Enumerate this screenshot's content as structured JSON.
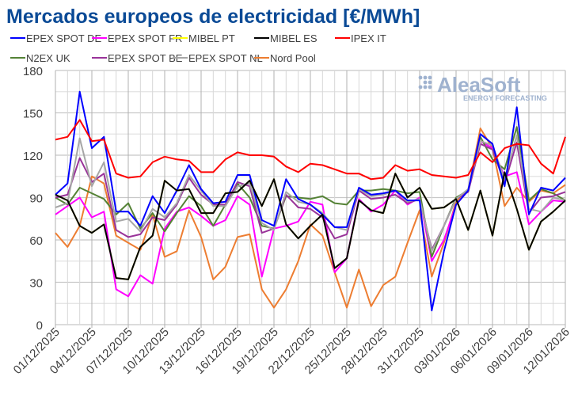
{
  "chart_data": {
    "type": "line",
    "title": "Mercados europeos de electricidad [€/MWh]",
    "title_color": "#0a4a96",
    "xlabel": "",
    "ylabel": "",
    "ylim": [
      0,
      180
    ],
    "yticks": [
      0,
      30,
      60,
      90,
      120,
      150,
      180
    ],
    "grid": true,
    "legend_position": "top",
    "watermark": "AleaSoft ENERGY FORECASTING",
    "x_start": "01/12/2025",
    "x_tick_labels": [
      "01/12/2025",
      "04/12/2025",
      "07/12/2025",
      "10/12/2025",
      "13/12/2025",
      "16/12/2025",
      "19/12/2025",
      "22/12/2025",
      "25/12/2025",
      "28/12/2025",
      "31/12/2025",
      "03/01/2026",
      "06/01/2026",
      "09/01/2026",
      "12/01/2026"
    ],
    "series": [
      {
        "name": "MIBEL PT",
        "color": "#ffff00",
        "values": [
          92,
          88,
          70,
          65,
          71,
          33,
          32,
          55,
          63,
          102,
          95,
          96,
          79,
          79,
          93,
          94,
          102,
          84,
          103,
          71,
          61,
          70,
          78,
          40,
          47,
          88,
          81,
          79,
          107,
          90,
          97,
          82,
          83,
          89,
          67,
          95,
          63,
          108,
          82,
          53,
          73,
          80,
          88
        ]
      },
      {
        "name": "Nord Pool",
        "color": "#ed7d31",
        "values": [
          65,
          55,
          70,
          105,
          100,
          63,
          58,
          53,
          78,
          48,
          52,
          81,
          62,
          32,
          41,
          62,
          64,
          25,
          12,
          25,
          45,
          71,
          63,
          37,
          12,
          39,
          13,
          28,
          34,
          58,
          81,
          34,
          58,
          87,
          95,
          139,
          125,
          84,
          97,
          87,
          95,
          93,
          99
        ]
      },
      {
        "name": "EPEX SPOT FR",
        "color": "#ff00ff",
        "values": [
          78,
          84,
          90,
          76,
          80,
          25,
          20,
          35,
          29,
          68,
          80,
          83,
          77,
          70,
          74,
          91,
          85,
          34,
          68,
          70,
          73,
          87,
          85,
          37,
          47,
          89,
          80,
          85,
          95,
          85,
          90,
          45,
          60,
          85,
          95,
          130,
          125,
          105,
          108,
          71,
          80,
          88,
          87
        ]
      },
      {
        "name": "N2EX UK",
        "color": "#548235",
        "values": [
          90,
          85,
          97,
          93,
          89,
          78,
          86,
          68,
          79,
          66,
          79,
          91,
          84,
          70,
          85,
          100,
          90,
          70,
          68,
          91,
          90,
          89,
          91,
          86,
          85,
          95,
          95,
          96,
          95,
          93,
          94,
          48,
          70,
          90,
          95,
          133,
          117,
          110,
          140,
          88,
          96,
          93,
          88
        ]
      },
      {
        "name": "EPEX SPOT BE",
        "color": "#993399",
        "values": [
          90,
          92,
          118,
          101,
          107,
          67,
          62,
          64,
          76,
          74,
          85,
          104,
          92,
          85,
          85,
          101,
          98,
          65,
          68,
          92,
          83,
          82,
          76,
          61,
          64,
          95,
          89,
          90,
          92,
          86,
          89,
          53,
          70,
          89,
          94,
          128,
          124,
          100,
          129,
          79,
          90,
          91,
          94
        ]
      },
      {
        "name": "EPEX SPOT NL",
        "color": "#a6a6a6",
        "values": [
          83,
          86,
          132,
          98,
          115,
          73,
          75,
          66,
          82,
          76,
          86,
          106,
          95,
          84,
          84,
          98,
          100,
          72,
          67,
          94,
          87,
          85,
          79,
          69,
          67,
          96,
          91,
          92,
          95,
          87,
          89,
          52,
          70,
          89,
          96,
          130,
          127,
          103,
          134,
          82,
          80,
          90,
          88
        ]
      },
      {
        "name": "EPEX SPOT DE",
        "color": "#0000ff",
        "values": [
          92,
          100,
          165,
          125,
          133,
          80,
          80,
          70,
          91,
          79,
          95,
          113,
          96,
          86,
          87,
          106,
          106,
          74,
          70,
          103,
          89,
          85,
          78,
          69,
          69,
          97,
          92,
          93,
          95,
          88,
          88,
          10,
          52,
          85,
          95,
          135,
          128,
          98,
          154,
          78,
          97,
          95,
          104
        ]
      },
      {
        "name": "MIBEL ES",
        "color": "#000000",
        "values": [
          92,
          88,
          70,
          65,
          71,
          33,
          32,
          55,
          63,
          102,
          95,
          96,
          79,
          79,
          93,
          94,
          102,
          84,
          103,
          71,
          61,
          70,
          78,
          40,
          47,
          88,
          81,
          79,
          107,
          90,
          97,
          82,
          83,
          89,
          67,
          95,
          63,
          108,
          82,
          53,
          73,
          80,
          88
        ]
      },
      {
        "name": "IPEX IT",
        "color": "#ff0000",
        "values": [
          131,
          133,
          145,
          130,
          131,
          107,
          104,
          105,
          115,
          119,
          117,
          116,
          108,
          108,
          117,
          122,
          120,
          120,
          119,
          112,
          108,
          114,
          113,
          110,
          107,
          107,
          103,
          104,
          113,
          109,
          110,
          106,
          105,
          104,
          106,
          122,
          115,
          125,
          128,
          127,
          114,
          107,
          133
        ]
      }
    ],
    "legend_order": [
      "EPEX SPOT DE",
      "EPEX SPOT FR",
      "MIBEL PT",
      "MIBEL ES",
      "IPEX IT",
      "N2EX UK",
      "EPEX SPOT BE",
      "EPEX SPOT NL",
      "Nord Pool"
    ]
  }
}
